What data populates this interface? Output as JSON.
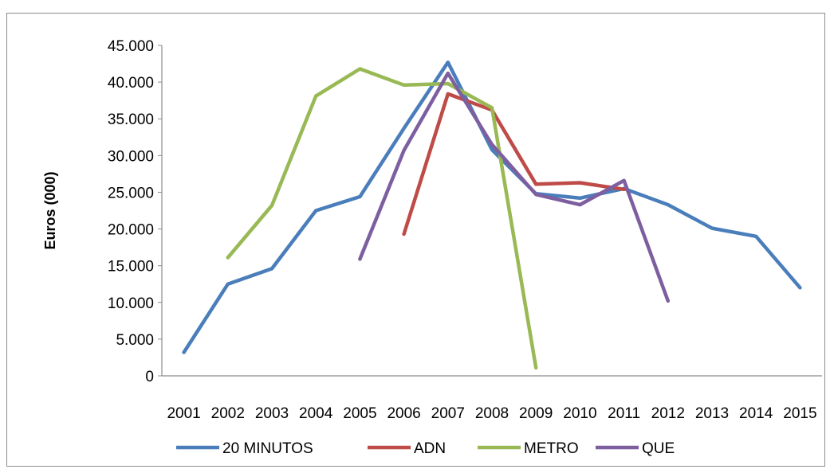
{
  "chart_data": {
    "type": "line",
    "title": "",
    "xlabel": "",
    "ylabel": "Euros (000)",
    "ylim": [
      0,
      45000
    ],
    "yticks": [
      "0",
      "5.000",
      "10.000",
      "15.000",
      "20.000",
      "25.000",
      "30.000",
      "35.000",
      "40.000",
      "45.000"
    ],
    "categories": [
      "2001",
      "2002",
      "2003",
      "2004",
      "2005",
      "2006",
      "2007",
      "2008",
      "2009",
      "2010",
      "2011",
      "2012",
      "2013",
      "2014",
      "2015"
    ],
    "grid": false,
    "legend_position": "bottom",
    "series": [
      {
        "name": "20 MINUTOS",
        "color": "#4a7ebb",
        "values": [
          3200,
          12500,
          14600,
          22500,
          24400,
          33700,
          42700,
          30800,
          24800,
          24200,
          25500,
          23300,
          20100,
          19000,
          12000
        ]
      },
      {
        "name": "ADN",
        "color": "#be4b48",
        "values": [
          null,
          null,
          null,
          null,
          null,
          19300,
          38400,
          36200,
          26100,
          26300,
          25400,
          null,
          null,
          null,
          null
        ]
      },
      {
        "name": "METRO",
        "color": "#98b954",
        "values": [
          null,
          16100,
          23200,
          38100,
          41800,
          39600,
          39800,
          36500,
          1100,
          null,
          null,
          null,
          null,
          null,
          null
        ]
      },
      {
        "name": "QUE",
        "color": "#7d5fa0",
        "values": [
          null,
          null,
          null,
          null,
          15900,
          30700,
          41200,
          31500,
          24700,
          23300,
          26600,
          10200,
          null,
          null,
          null
        ]
      }
    ]
  }
}
